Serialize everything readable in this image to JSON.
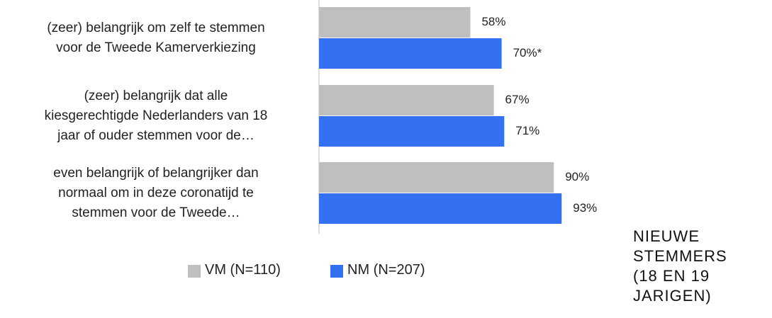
{
  "chart_data": {
    "type": "hbar",
    "categories": [
      "(zeer) belangrijk  om zelf te stemmen\nvoor de Tweede Kamerverkiezing",
      "(zeer) belangrijk dat alle\nkiesgerechtigde Nederlanders van 18\njaar of ouder stemmen voor de…",
      "even belangrijk of belangrijker dan\nnormaal om in deze coronatijd te\nstemmen voor de Tweede…"
    ],
    "series": [
      {
        "name": "VM (N=110)",
        "color": "#bfbfbf",
        "values": [
          58,
          67,
          90
        ],
        "value_labels": [
          "58%",
          "67%",
          "90%"
        ]
      },
      {
        "name": "NM (N=207)",
        "color": "#3371f2",
        "values": [
          70,
          71,
          93
        ],
        "value_labels": [
          "70%*",
          "71%",
          "93%"
        ]
      }
    ],
    "xlim": [
      0,
      100
    ],
    "annotation": "NIEUWE\nSTEMMERS\n(18 EN 19\nJARIGEN)"
  }
}
